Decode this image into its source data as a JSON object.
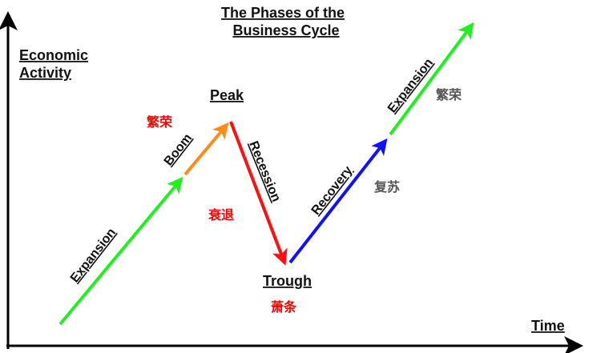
{
  "title_line1": "The Phases of the",
  "title_line2": "Business Cycle",
  "y_axis_label_line1": "Economic",
  "y_axis_label_line2": "Activity",
  "x_axis_label": "Time",
  "points": {
    "peak": "Peak",
    "trough": "Trough"
  },
  "phases": {
    "expansion_1": "Expansion",
    "boom": "Boom",
    "recession": "Recession",
    "recovery": "Recovery",
    "expansion_2": "Expansion"
  },
  "annotations": {
    "boom_cn": "繁荣",
    "recession_cn": "衰退",
    "trough_cn": "萧条",
    "recovery_cn": "复苏",
    "expansion_cn": "繁荣"
  },
  "colors": {
    "expansion": "#22ee22",
    "boom": "#ff8c1a",
    "recession": "#ff1010",
    "recovery": "#1010ff",
    "axis": "#000000",
    "cn_red": "#ff0000",
    "cn_gray": "#555555"
  }
}
